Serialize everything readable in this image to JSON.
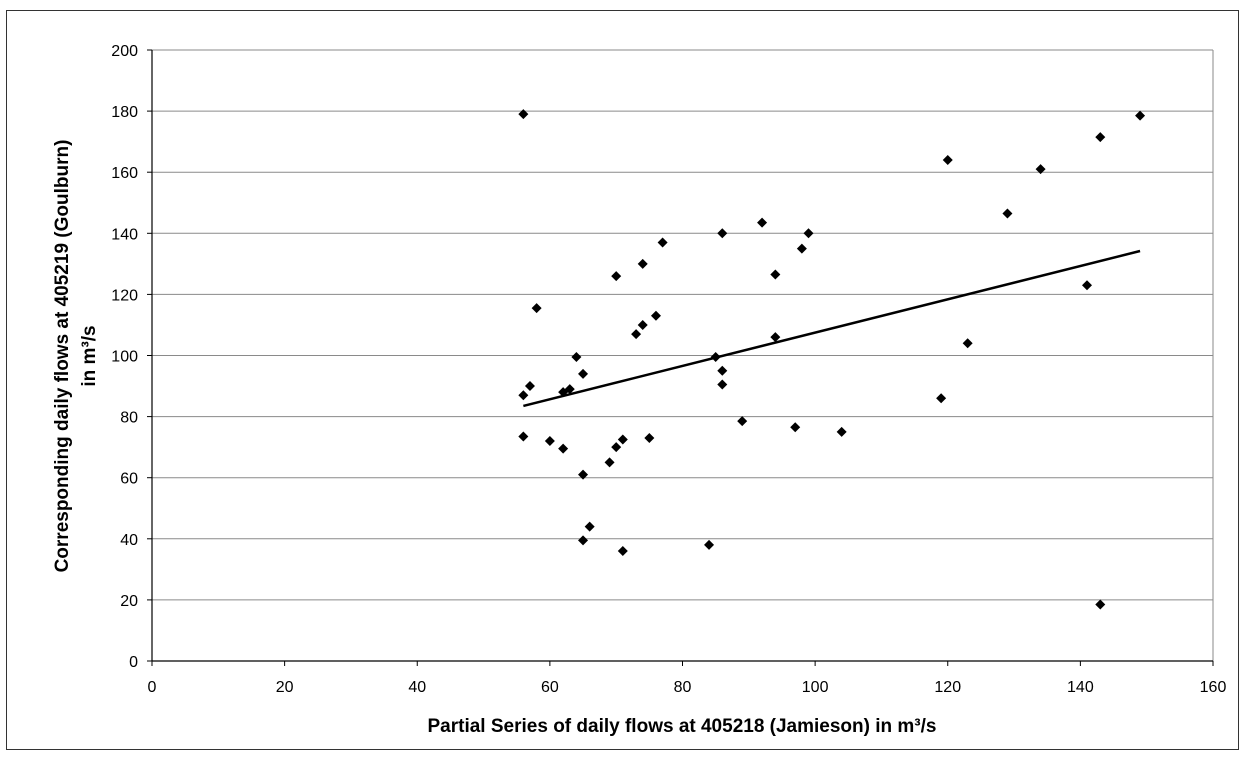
{
  "chart_data": {
    "type": "scatter",
    "xlabel": "Partial Series of daily flows at 405218 (Jamieson) in m³/s",
    "ylabel_lines": [
      "Corresponding daily flows at 405219 (Goulburn)",
      "in m³/s"
    ],
    "xlim": [
      0,
      160
    ],
    "ylim": [
      0,
      200
    ],
    "x_ticks": [
      0,
      20,
      40,
      60,
      80,
      100,
      120,
      140,
      160
    ],
    "y_ticks": [
      0,
      20,
      40,
      60,
      80,
      100,
      120,
      140,
      160,
      180,
      200
    ],
    "grid": "horizontal",
    "marker": "diamond",
    "marker_color": "#000000",
    "series": [
      {
        "points": [
          [
            56,
            179
          ],
          [
            56,
            87
          ],
          [
            57,
            90
          ],
          [
            56,
            73.5
          ],
          [
            58,
            115.5
          ],
          [
            60,
            72
          ],
          [
            62,
            88
          ],
          [
            62,
            69.5
          ],
          [
            63,
            89
          ],
          [
            64,
            99.5
          ],
          [
            65,
            94
          ],
          [
            65,
            61
          ],
          [
            65,
            39.5
          ],
          [
            66,
            44
          ],
          [
            69,
            65
          ],
          [
            70,
            126
          ],
          [
            70,
            70
          ],
          [
            71,
            72.5
          ],
          [
            71,
            36
          ],
          [
            73,
            107
          ],
          [
            74,
            130
          ],
          [
            74,
            110
          ],
          [
            75,
            73
          ],
          [
            76,
            113
          ],
          [
            77,
            137
          ],
          [
            84,
            38
          ],
          [
            85,
            99.5
          ],
          [
            86,
            140
          ],
          [
            86,
            95
          ],
          [
            86,
            90.5
          ],
          [
            89,
            78.5
          ],
          [
            92,
            143.5
          ],
          [
            94,
            126.5
          ],
          [
            94,
            106
          ],
          [
            97,
            76.5
          ],
          [
            98,
            135
          ],
          [
            99,
            140
          ],
          [
            104,
            75
          ],
          [
            119,
            86
          ],
          [
            120,
            164
          ],
          [
            123,
            104
          ],
          [
            129,
            146.5
          ],
          [
            134,
            161
          ],
          [
            141,
            123
          ],
          [
            143,
            171.5
          ],
          [
            143,
            18.5
          ],
          [
            149,
            178.5
          ]
        ]
      }
    ],
    "trendline": {
      "type": "linear",
      "x": [
        56,
        149
      ],
      "y": [
        83.5,
        134.2
      ],
      "color": "#000000"
    }
  }
}
